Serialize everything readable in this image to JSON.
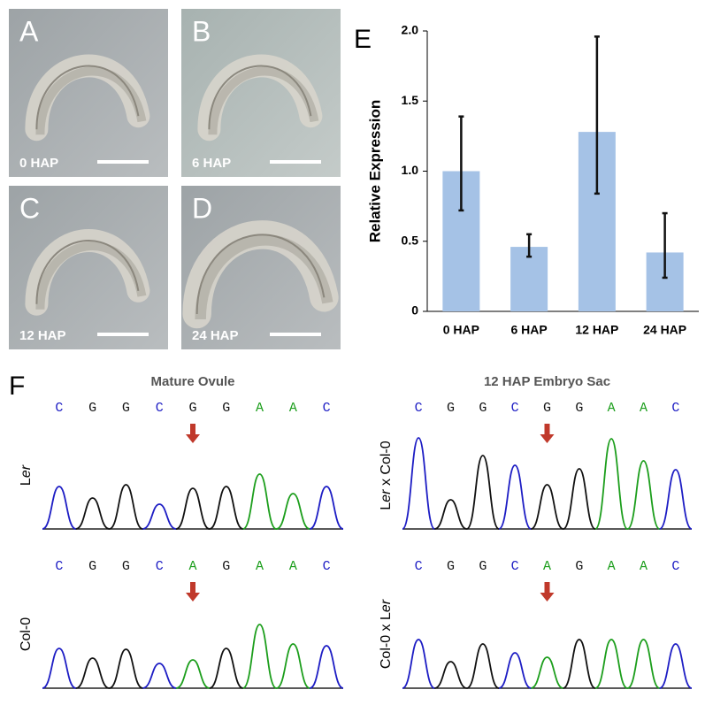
{
  "micrographs": [
    {
      "letter": "A",
      "label": "0 HAP"
    },
    {
      "letter": "B",
      "label": "6 HAP"
    },
    {
      "letter": "C",
      "label": "12 HAP"
    },
    {
      "letter": "D",
      "label": "24 HAP"
    }
  ],
  "chart_data": {
    "type": "bar",
    "panel": "E",
    "ylabel": "Relative Expression",
    "categories": [
      "0 HAP",
      "6 HAP",
      "12 HAP",
      "24 HAP"
    ],
    "values": [
      1.0,
      0.46,
      1.28,
      0.42
    ],
    "error_low": [
      0.72,
      0.39,
      0.84,
      0.24
    ],
    "error_high": [
      1.39,
      0.55,
      1.96,
      0.7
    ],
    "color": "#a5c2e6",
    "ylim": [
      0,
      2
    ],
    "yticks": [
      0,
      0.5,
      {
        "value": 1,
        "label": "1.0"
      },
      1.5,
      {
        "value": 2,
        "label": "2.0"
      }
    ]
  },
  "sequencing": {
    "panel": "F",
    "base_colors": {
      "A": "#1c9e1c",
      "C": "#1d1dc4",
      "G": "#111111"
    },
    "arrow_color": "#c0392b",
    "arrow_index": 4,
    "columns": [
      {
        "title": "Mature Ovule",
        "traces": [
          {
            "label": [
              {
                "text": "L"
              },
              {
                "text": "er",
                "italic": true
              }
            ],
            "bases": [
              "C",
              "G",
              "G",
              "C",
              "G",
              "G",
              "A",
              "A",
              "C"
            ],
            "peak_heights": [
              48,
              35,
              50,
              28,
              46,
              48,
              62,
              40,
              48
            ]
          },
          {
            "label": [
              {
                "text": "Col-0"
              }
            ],
            "bases": [
              "C",
              "G",
              "G",
              "C",
              "A",
              "G",
              "A",
              "A",
              "C"
            ],
            "peak_heights": [
              45,
              34,
              44,
              28,
              32,
              45,
              72,
              50,
              48
            ]
          }
        ]
      },
      {
        "title": "12 HAP Embryo Sac",
        "traces": [
          {
            "label": [
              {
                "text": "L"
              },
              {
                "text": "er",
                "italic": true
              },
              {
                "text": " x Col-0"
              }
            ],
            "bases": [
              "C",
              "G",
              "G",
              "C",
              "G",
              "G",
              "A",
              "A",
              "C"
            ],
            "peak_heights": [
              103,
              33,
              83,
              72,
              50,
              68,
              102,
              77,
              67
            ]
          },
          {
            "label": [
              {
                "text": "Col-0 x L"
              },
              {
                "text": "er",
                "italic": true
              }
            ],
            "bases": [
              "C",
              "G",
              "G",
              "C",
              "A",
              "G",
              "A",
              "A",
              "C"
            ],
            "peak_heights": [
              55,
              30,
              50,
              40,
              35,
              55,
              55,
              55,
              50
            ]
          }
        ]
      }
    ]
  }
}
